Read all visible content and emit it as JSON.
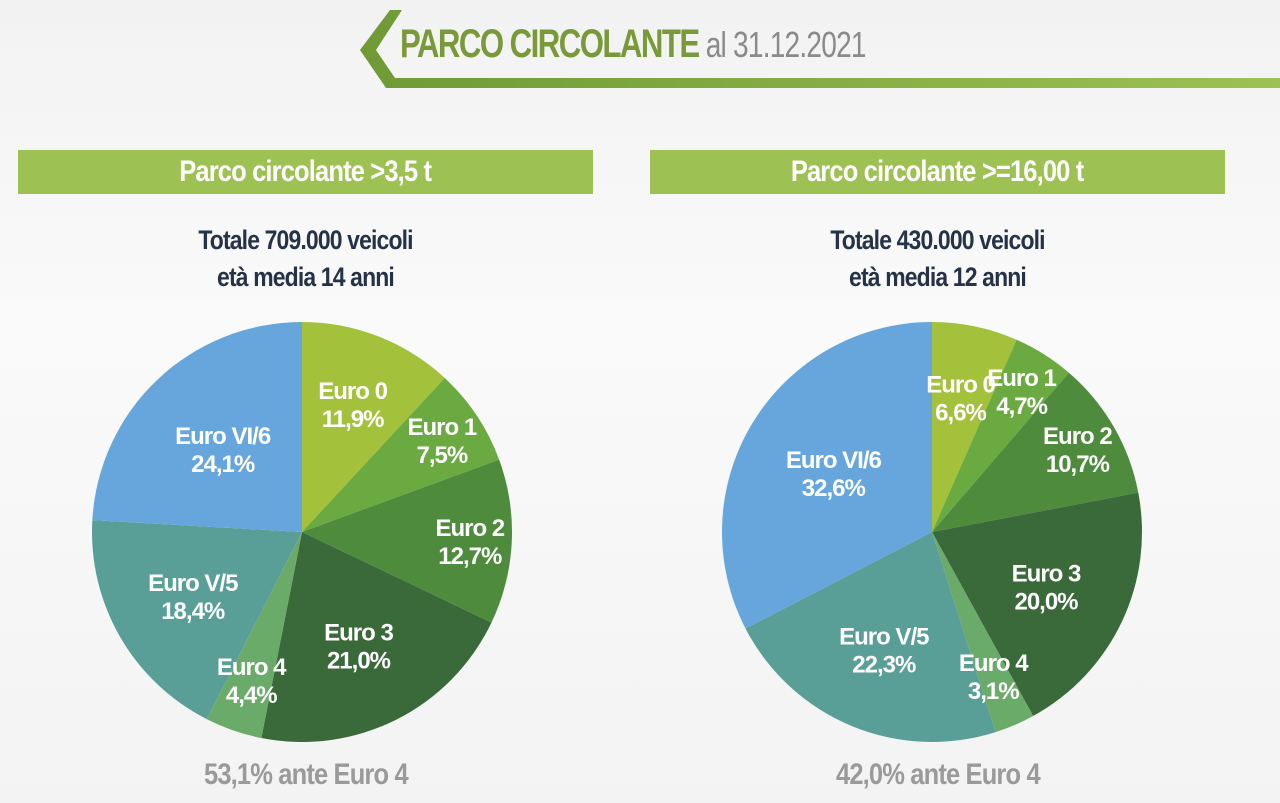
{
  "header": {
    "title": "PARCO CIRCOLANTE",
    "date": "al 31.12.2021",
    "accent": "#7a9a3a"
  },
  "chart_data": [
    {
      "type": "pie",
      "title": "Parco circolante >3,5 t",
      "subtitle": [
        "Totale 709.000 veicoli",
        "età media 14 anni"
      ],
      "footnote": "53,1% ante Euro 4",
      "slices": [
        {
          "label": "Euro 0",
          "value": 11.9,
          "text": "11,9%",
          "color": "#a3c13b"
        },
        {
          "label": "Euro 1",
          "value": 7.5,
          "text": "7,5%",
          "color": "#6aaa41"
        },
        {
          "label": "Euro 2",
          "value": 12.7,
          "text": "12,7%",
          "color": "#4e8b3c"
        },
        {
          "label": "Euro 3",
          "value": 21.0,
          "text": "21,0%",
          "color": "#3a6a39"
        },
        {
          "label": "Euro 4",
          "value": 4.4,
          "text": "4,4%",
          "color": "#6aab6a"
        },
        {
          "label": "Euro V/5",
          "value": 18.4,
          "text": "18,4%",
          "color": "#5a9f97"
        },
        {
          "label": "Euro VI/6",
          "value": 24.1,
          "text": "24,1%",
          "color": "#66a6dc"
        }
      ]
    },
    {
      "type": "pie",
      "title": "Parco circolante >=16,00 t",
      "subtitle": [
        "Totale 430.000 veicoli",
        "età media 12 anni"
      ],
      "footnote": "42,0% ante Euro 4",
      "slices": [
        {
          "label": "Euro 0",
          "value": 6.6,
          "text": "6,6%",
          "color": "#a3c13b"
        },
        {
          "label": "Euro 1",
          "value": 4.7,
          "text": "4,7%",
          "color": "#6aaa41"
        },
        {
          "label": "Euro 2",
          "value": 10.7,
          "text": "10,7%",
          "color": "#4e8b3c"
        },
        {
          "label": "Euro 3",
          "value": 20.0,
          "text": "20,0%",
          "color": "#3a6a39"
        },
        {
          "label": "Euro 4",
          "value": 3.1,
          "text": "3,1%",
          "color": "#6aab6a"
        },
        {
          "label": "Euro V/5",
          "value": 22.3,
          "text": "22,3%",
          "color": "#5a9f97"
        },
        {
          "label": "Euro VI/6",
          "value": 32.6,
          "text": "32,6%",
          "color": "#66a6dc"
        }
      ]
    }
  ]
}
